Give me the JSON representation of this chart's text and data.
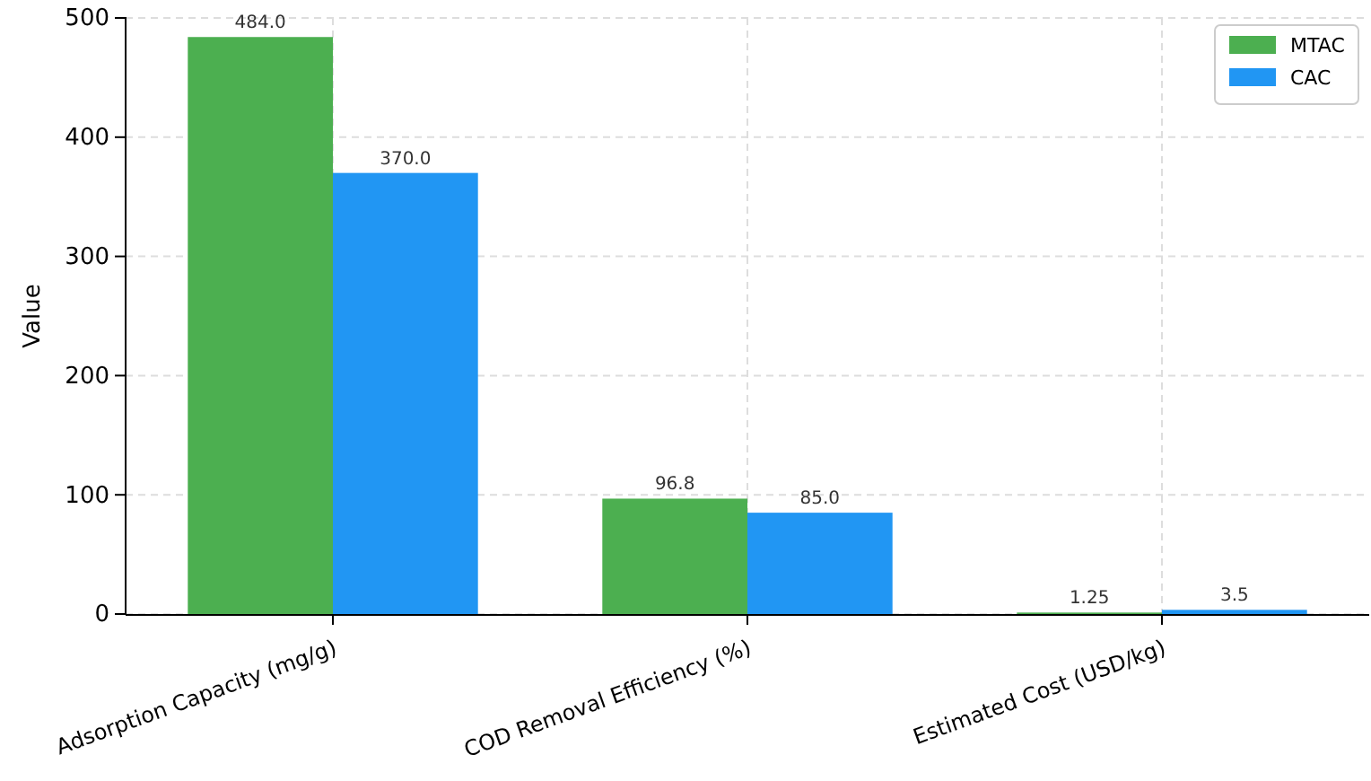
{
  "chart_data": {
    "type": "bar",
    "ylabel": "Value",
    "categories": [
      "Adsorption Capacity (mg/g)",
      "COD Removal Efficiency (%)",
      "Estimated Cost (USD/kg)"
    ],
    "series": [
      {
        "name": "MTAC",
        "color": "#4caf50",
        "values": [
          484.0,
          96.8,
          1.25
        ],
        "value_labels": [
          "484.0",
          "96.8",
          "1.25"
        ]
      },
      {
        "name": "CAC",
        "color": "#2196f3",
        "values": [
          370.0,
          85.0,
          3.5
        ],
        "value_labels": [
          "370.0",
          "85.0",
          "3.5"
        ]
      }
    ],
    "ylim": [
      0,
      500
    ],
    "yticks": [
      0,
      100,
      200,
      300,
      400,
      500
    ],
    "grid": true,
    "legend": "top right"
  }
}
